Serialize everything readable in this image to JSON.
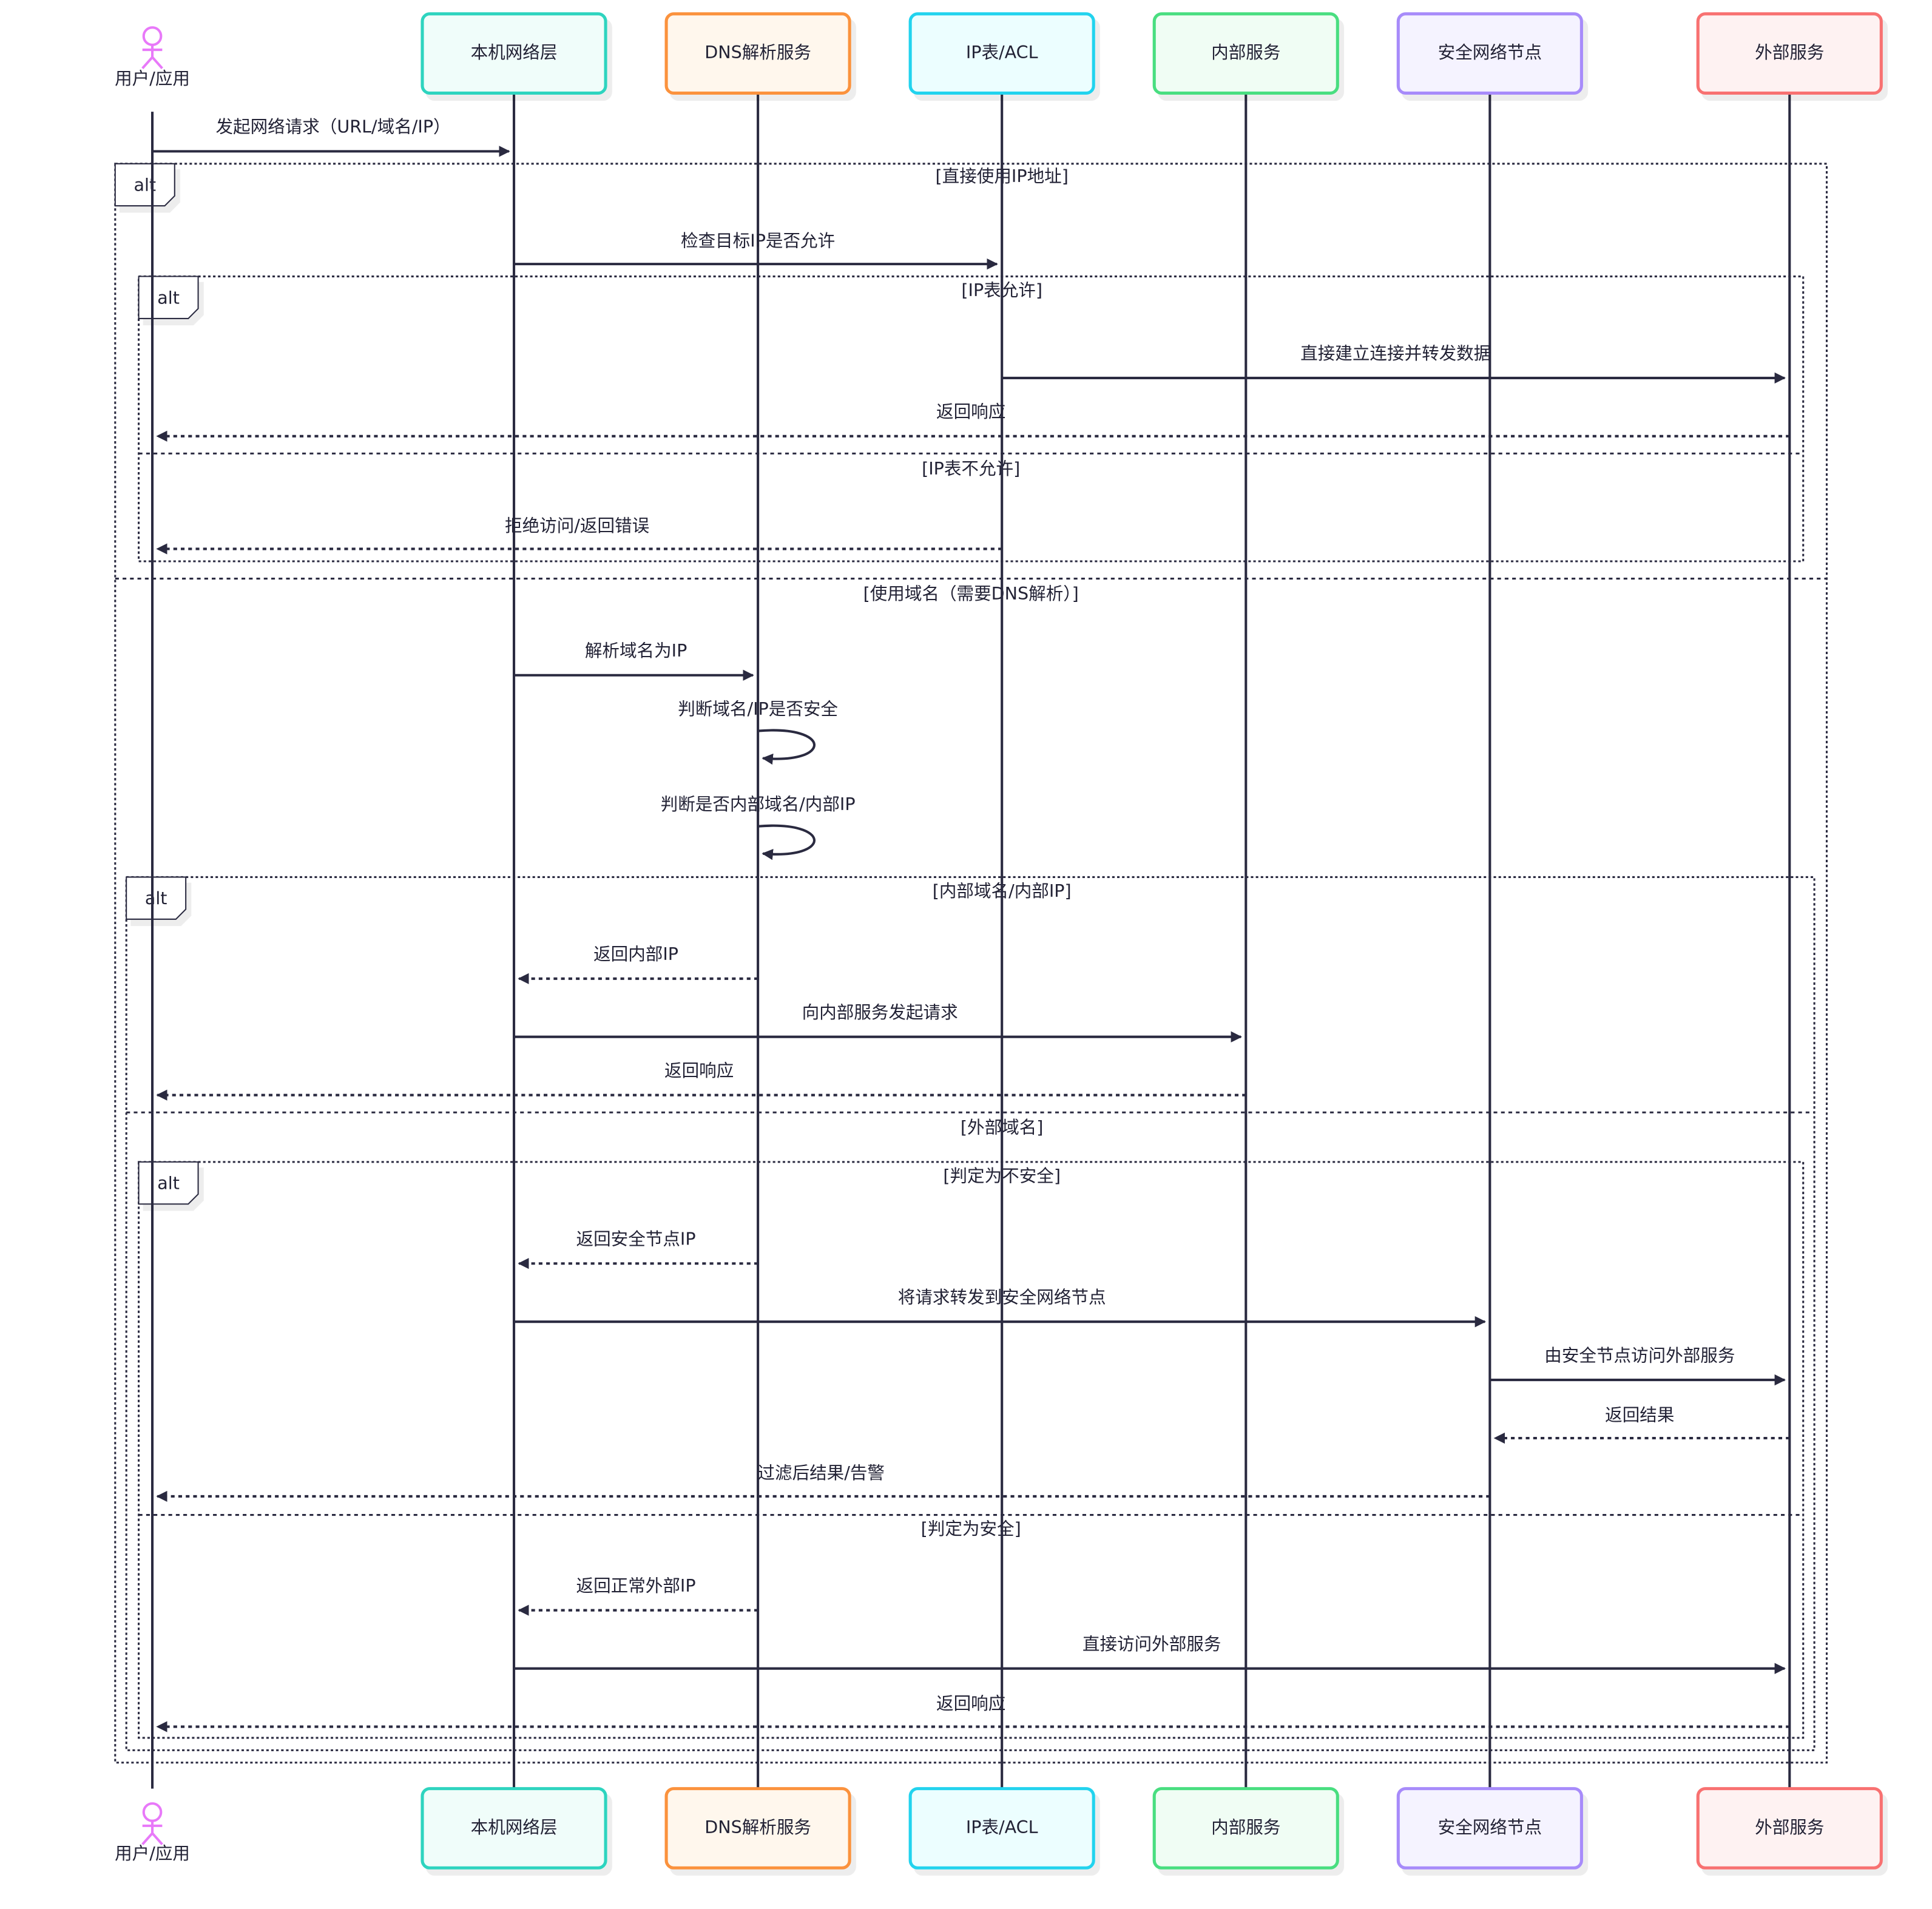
{
  "diagram_type": "sequence",
  "line_color": "#2a2a40",
  "actor": {
    "id": "user",
    "label": "用户/应用",
    "color": "#e879f9"
  },
  "participants": [
    {
      "id": "local",
      "label": "本机网络层",
      "border": "#2dd4bf",
      "fill": "#f0fdfa"
    },
    {
      "id": "dns",
      "label": "DNS解析服务",
      "border": "#fb923c",
      "fill": "#fff7ed"
    },
    {
      "id": "ip",
      "label": "IP表/ACL",
      "border": "#22d3ee",
      "fill": "#ecfeff"
    },
    {
      "id": "internal",
      "label": "内部服务",
      "border": "#4ade80",
      "fill": "#f0fdf4"
    },
    {
      "id": "secure",
      "label": "安全网络节点",
      "border": "#a78bfa",
      "fill": "#f5f3ff"
    },
    {
      "id": "external",
      "label": "外部服务",
      "border": "#f87171",
      "fill": "#fef2f2"
    }
  ],
  "messages": [
    {
      "from": "user",
      "to": "local",
      "text": "发起网络请求（URL/域名/IP）",
      "dashed": false
    },
    {
      "from": "local",
      "to": "ip",
      "text": "检查目标IP是否允许",
      "dashed": false
    },
    {
      "from": "ip",
      "to": "external",
      "text": "直接建立连接并转发数据",
      "dashed": false
    },
    {
      "from": "external",
      "to": "user",
      "text": "返回响应",
      "dashed": true
    },
    {
      "from": "ip",
      "to": "user",
      "text": "拒绝访问/返回错误",
      "dashed": true
    },
    {
      "from": "local",
      "to": "dns",
      "text": "解析域名为IP",
      "dashed": false
    },
    {
      "from": "dns",
      "to": "dns",
      "text": "判断域名/IP是否安全",
      "dashed": false
    },
    {
      "from": "dns",
      "to": "dns",
      "text": "判断是否内部域名/内部IP",
      "dashed": false
    },
    {
      "from": "dns",
      "to": "local",
      "text": "返回内部IP",
      "dashed": true
    },
    {
      "from": "local",
      "to": "internal",
      "text": "向内部服务发起请求",
      "dashed": false
    },
    {
      "from": "internal",
      "to": "user",
      "text": "返回响应",
      "dashed": true
    },
    {
      "from": "dns",
      "to": "local",
      "text": "返回安全节点IP",
      "dashed": true
    },
    {
      "from": "local",
      "to": "secure",
      "text": "将请求转发到安全网络节点",
      "dashed": false
    },
    {
      "from": "secure",
      "to": "external",
      "text": "由安全节点访问外部服务",
      "dashed": false
    },
    {
      "from": "external",
      "to": "secure",
      "text": "返回结果",
      "dashed": true
    },
    {
      "from": "secure",
      "to": "user",
      "text": "过滤后结果/告警",
      "dashed": true
    },
    {
      "from": "dns",
      "to": "local",
      "text": "返回正常外部IP",
      "dashed": true
    },
    {
      "from": "local",
      "to": "external",
      "text": "直接访问外部服务",
      "dashed": false
    },
    {
      "from": "external",
      "to": "user",
      "text": "返回响应",
      "dashed": true
    }
  ],
  "fragments": [
    {
      "type": "alt",
      "conditions": [
        "[直接使用IP地址]",
        "[使用域名（需要DNS解析）]"
      ]
    },
    {
      "type": "alt",
      "conditions": [
        "[IP表允许]",
        "[IP表不允许]"
      ]
    },
    {
      "type": "alt",
      "conditions": [
        "[内部域名/内部IP]",
        "[外部域名]"
      ]
    },
    {
      "type": "alt",
      "conditions": [
        "[判定为不安全]",
        "[判定为安全]"
      ]
    }
  ]
}
